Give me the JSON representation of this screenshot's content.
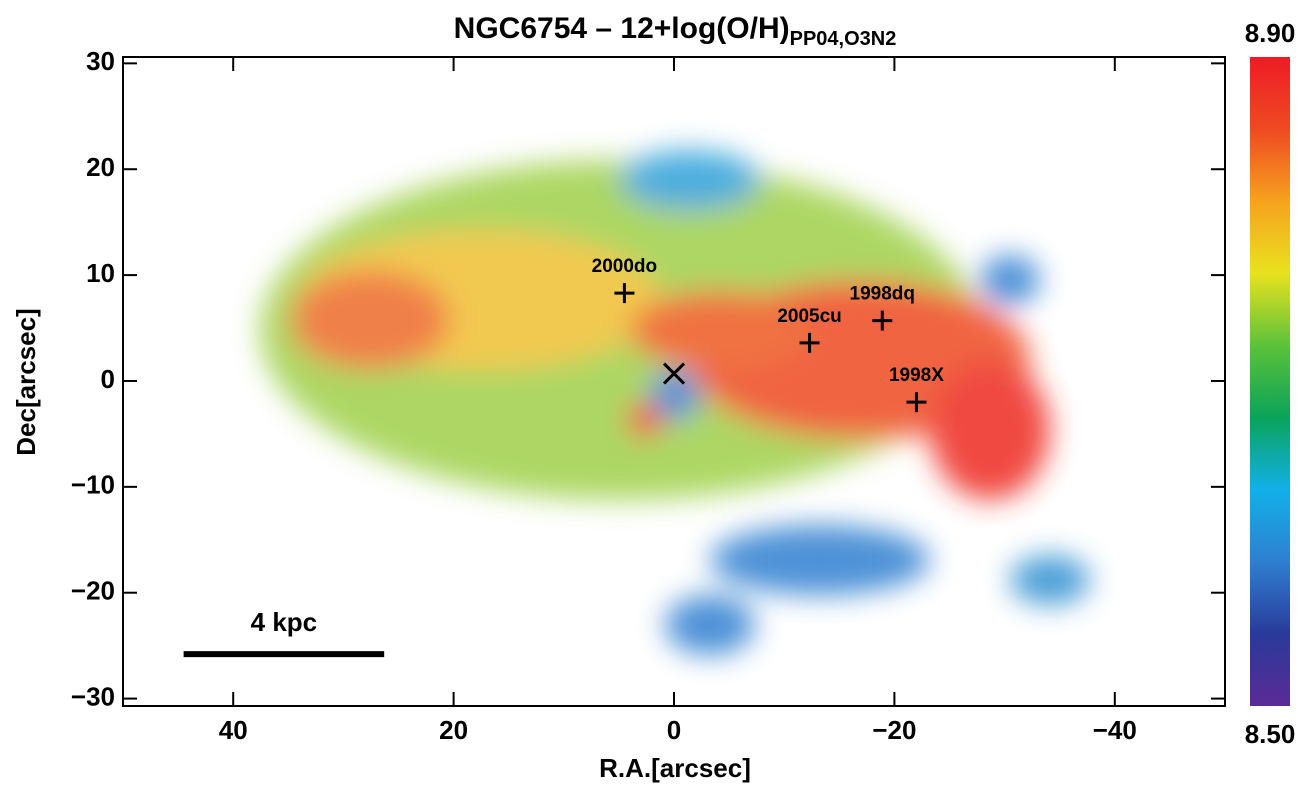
{
  "chart_data": {
    "type": "scatter",
    "title": "NGC6754 – 12+log(O/H)",
    "title_subscript": "PP04,O3N2",
    "x_label": "R.A.[arcsec]",
    "y_label": "Dec[arcsec]",
    "xlim": [
      50,
      -50
    ],
    "ylim": [
      -30.7,
      30.6
    ],
    "xticks": [
      40,
      20,
      0,
      {
        "value": -20,
        "label": "−20"
      },
      {
        "value": -40,
        "label": "−40"
      }
    ],
    "yticks": [
      {
        "value": -30,
        "label": "−30"
      },
      {
        "value": -20,
        "label": "−20"
      },
      {
        "value": -10,
        "label": "−10"
      },
      0,
      10,
      20,
      30
    ],
    "points": [
      {
        "label": "2000do",
        "x": 4.5,
        "y": 8.3
      },
      {
        "label": "2005cu",
        "x": -12.3,
        "y": 3.6
      },
      {
        "label": "1998dq",
        "x": -18.9,
        "y": 5.7
      },
      {
        "label": "1998X",
        "x": -22,
        "y": -2
      }
    ],
    "nucleus": {
      "x": 0,
      "y": 0.7
    },
    "scale_bar": {
      "label": "4 kpc",
      "x": [
        44.5,
        26.3
      ],
      "y": -25.8
    },
    "colorbar": {
      "lim": [
        8.5,
        8.9
      ],
      "ticks": [
        {
          "value": 8.9,
          "label": "8.90"
        },
        {
          "value": 8.5,
          "label": "8.50"
        }
      ],
      "colors": [
        "#5b2a96",
        "#2a3a9a",
        "#2f7fd0",
        "#12b0e8",
        "#0aa35a",
        "#5cc23a",
        "#e8e21e",
        "#f6a21e",
        "#ee4a22",
        "#ee1c25"
      ]
    }
  }
}
